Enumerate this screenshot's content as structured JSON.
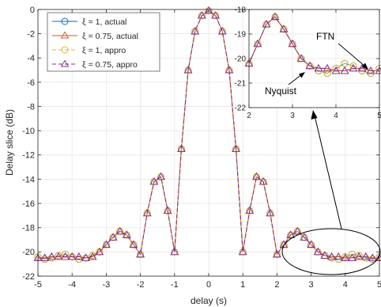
{
  "chart_data": {
    "type": "line",
    "title": "",
    "xlabel": "delay (s)",
    "ylabel": "Delay slice (dB)",
    "xlim": [
      -5,
      5
    ],
    "ylim": [
      -22,
      0
    ],
    "xticks": [
      "-5",
      "-4",
      "-3",
      "-2",
      "-1",
      "0",
      "1",
      "2",
      "3",
      "4",
      "5"
    ],
    "yticks": [
      "0",
      "-2",
      "-4",
      "-6",
      "-8",
      "-10",
      "-12",
      "-14",
      "-16",
      "-18",
      "-20",
      "-22"
    ],
    "grid": true,
    "legend_position": "top-left",
    "series": [
      {
        "name": "ξ = 1, actual",
        "color": "#0072bd",
        "marker": "circle",
        "dash": "solid",
        "x": [
          -5,
          -4.8,
          -4.6,
          -4.4,
          -4.2,
          -4,
          -3.8,
          -3.6,
          -3.4,
          -3.2,
          -3,
          -2.8,
          -2.6,
          -2.4,
          -2.2,
          -2,
          -1.8,
          -1.6,
          -1.4,
          -1.2,
          -1,
          -0.8,
          -0.6,
          -0.4,
          -0.2,
          0,
          0.2,
          0.4,
          0.6,
          0.8,
          1,
          1.2,
          1.4,
          1.6,
          1.8,
          2,
          2.2,
          2.4,
          2.6,
          2.8,
          3,
          3.2,
          3.4,
          3.6,
          3.8,
          4,
          4.2,
          4.4,
          4.6,
          4.8,
          5
        ],
        "y": [
          -20.4,
          -20.6,
          -20.5,
          -20.3,
          -20.2,
          -20.4,
          -20.6,
          -20.5,
          -20.3,
          -20.0,
          -19.4,
          -18.8,
          -18.3,
          -18.6,
          -19.4,
          -20.2,
          -16.8,
          -14.2,
          -13.8,
          -16.6,
          -20.0,
          -11.5,
          -5.0,
          -1.8,
          -0.5,
          -0.1,
          -0.5,
          -1.8,
          -5.0,
          -11.5,
          -20.0,
          -16.6,
          -13.8,
          -14.2,
          -16.8,
          -20.2,
          -19.4,
          -18.6,
          -18.3,
          -18.8,
          -19.4,
          -20.0,
          -20.3,
          -20.5,
          -20.6,
          -20.4,
          -20.2,
          -20.3,
          -20.5,
          -20.6,
          -20.4
        ]
      },
      {
        "name": "ξ = 0.75, actual",
        "color": "#d95319",
        "marker": "triangle",
        "dash": "solid",
        "x": [
          -5,
          -4.8,
          -4.6,
          -4.4,
          -4.2,
          -4,
          -3.8,
          -3.6,
          -3.4,
          -3.2,
          -3,
          -2.8,
          -2.6,
          -2.4,
          -2.2,
          -2,
          -1.8,
          -1.6,
          -1.4,
          -1.2,
          -1,
          -0.8,
          -0.6,
          -0.4,
          -0.2,
          0,
          0.2,
          0.4,
          0.6,
          0.8,
          1,
          1.2,
          1.4,
          1.6,
          1.8,
          2,
          2.2,
          2.4,
          2.6,
          2.8,
          3,
          3.2,
          3.4,
          3.6,
          3.8,
          4,
          4.2,
          4.4,
          4.6,
          4.8,
          5
        ],
        "y": [
          -20.5,
          -20.5,
          -20.4,
          -20.4,
          -20.4,
          -20.4,
          -20.4,
          -20.5,
          -20.4,
          -20.0,
          -19.4,
          -18.8,
          -18.3,
          -18.6,
          -19.4,
          -20.2,
          -16.8,
          -14.2,
          -13.8,
          -16.6,
          -20.0,
          -11.5,
          -5.0,
          -1.8,
          -0.5,
          -0.1,
          -0.5,
          -1.8,
          -5.0,
          -11.5,
          -20.0,
          -16.6,
          -13.8,
          -14.2,
          -16.8,
          -20.2,
          -19.4,
          -18.6,
          -18.3,
          -18.8,
          -19.4,
          -20.0,
          -20.3,
          -20.4,
          -20.4,
          -20.5,
          -20.5,
          -20.4,
          -20.4,
          -20.5,
          -20.5
        ]
      },
      {
        "name": "ξ = 1, appro",
        "color": "#edb120",
        "marker": "circle",
        "dash": "dashed",
        "x": [
          -5,
          -4.8,
          -4.6,
          -4.4,
          -4.2,
          -4,
          -3.8,
          -3.6,
          -3.4,
          -3.2,
          -3,
          -2.8,
          -2.6,
          -2.4,
          -2.2,
          -2,
          -1.8,
          -1.6,
          -1.4,
          -1.2,
          -1,
          -0.8,
          -0.6,
          -0.4,
          -0.2,
          0,
          0.2,
          0.4,
          0.6,
          0.8,
          1,
          1.2,
          1.4,
          1.6,
          1.8,
          2,
          2.2,
          2.4,
          2.6,
          2.8,
          3,
          3.2,
          3.4,
          3.6,
          3.8,
          4,
          4.2,
          4.4,
          4.6,
          4.8,
          5
        ],
        "y": [
          -20.4,
          -20.6,
          -20.5,
          -20.3,
          -20.2,
          -20.4,
          -20.6,
          -20.5,
          -20.3,
          -20.0,
          -19.4,
          -18.8,
          -18.3,
          -18.6,
          -19.4,
          -20.2,
          -16.8,
          -14.2,
          -13.8,
          -16.6,
          -20.0,
          -11.5,
          -5.0,
          -1.8,
          -0.5,
          -0.1,
          -0.5,
          -1.8,
          -5.0,
          -11.5,
          -20.0,
          -16.6,
          -13.8,
          -14.2,
          -16.8,
          -20.2,
          -19.4,
          -18.6,
          -18.3,
          -18.8,
          -19.4,
          -20.0,
          -20.3,
          -20.5,
          -20.6,
          -20.4,
          -20.2,
          -20.3,
          -20.5,
          -20.6,
          -20.4
        ]
      },
      {
        "name": "ξ = 0.75, appro",
        "color": "#7e2f8e",
        "marker": "triangle",
        "dash": "dashed",
        "x": [
          -5,
          -4.8,
          -4.6,
          -4.4,
          -4.2,
          -4,
          -3.8,
          -3.6,
          -3.4,
          -3.2,
          -3,
          -2.8,
          -2.6,
          -2.4,
          -2.2,
          -2,
          -1.8,
          -1.6,
          -1.4,
          -1.2,
          -1,
          -0.8,
          -0.6,
          -0.4,
          -0.2,
          0,
          0.2,
          0.4,
          0.6,
          0.8,
          1,
          1.2,
          1.4,
          1.6,
          1.8,
          2,
          2.2,
          2.4,
          2.6,
          2.8,
          3,
          3.2,
          3.4,
          3.6,
          3.8,
          4,
          4.2,
          4.4,
          4.6,
          4.8,
          5
        ],
        "y": [
          -20.5,
          -20.5,
          -20.4,
          -20.4,
          -20.4,
          -20.4,
          -20.4,
          -20.5,
          -20.4,
          -20.0,
          -19.4,
          -18.8,
          -18.3,
          -18.6,
          -19.4,
          -20.2,
          -16.8,
          -14.2,
          -13.8,
          -16.6,
          -20.0,
          -11.5,
          -5.0,
          -1.8,
          -0.5,
          -0.1,
          -0.5,
          -1.8,
          -5.0,
          -11.5,
          -20.0,
          -16.6,
          -13.8,
          -14.2,
          -16.8,
          -20.2,
          -19.4,
          -18.6,
          -18.3,
          -18.8,
          -19.4,
          -20.0,
          -20.3,
          -20.4,
          -20.4,
          -20.5,
          -20.5,
          -20.4,
          -20.4,
          -20.5,
          -20.5
        ]
      }
    ],
    "inset": {
      "xlim": [
        2,
        5
      ],
      "ylim": [
        -22,
        -18
      ],
      "xticks": [
        "2",
        "3",
        "4",
        "5"
      ],
      "yticks": [
        "-18",
        "-19",
        "-20",
        "-21",
        "-22"
      ],
      "annotations": [
        "FTN",
        "Nyquist"
      ]
    }
  }
}
